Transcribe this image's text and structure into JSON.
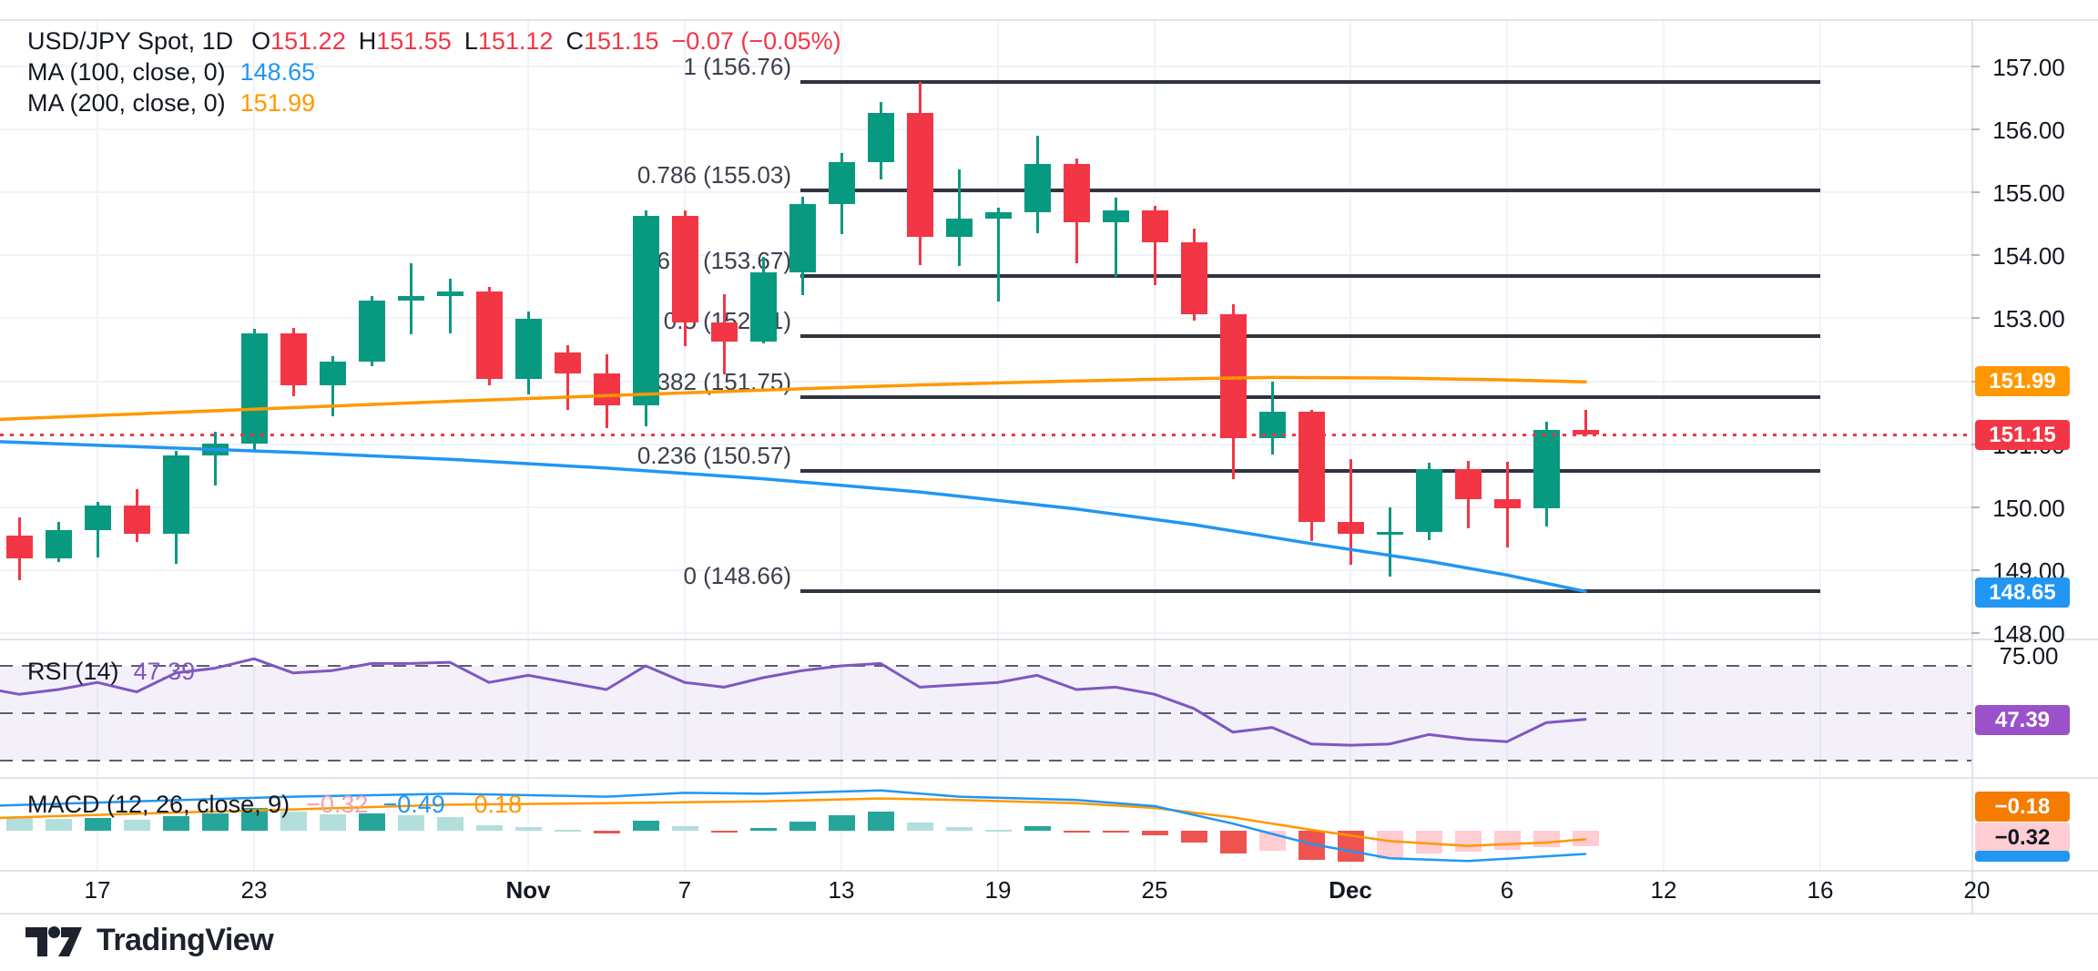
{
  "header": {
    "symbol": "USD/JPY Spot, 1D",
    "ohlc": {
      "o_key": "O",
      "o": "151.22",
      "h_key": "H",
      "h": "151.55",
      "l_key": "L",
      "l": "151.12",
      "c_key": "C",
      "c": "151.15",
      "change": "−0.07 (−0.05%)"
    },
    "ma100": {
      "label": "MA (100, close, 0)",
      "value": "148.65"
    },
    "ma200": {
      "label": "MA (200, close, 0)",
      "value": "151.99"
    }
  },
  "rsi_legend": {
    "label": "RSI (14)",
    "value": "47.39"
  },
  "macd_legend": {
    "label": "MACD (12, 26, close, 9)",
    "hist": "−0.32",
    "macd": "−0.49",
    "signal": "−0.18"
  },
  "badges": {
    "ma200": "151.99",
    "last": "151.15",
    "ma100": "148.65",
    "rsi": "47.39",
    "macd_signal": "−0.18",
    "macd_hist": "−0.32"
  },
  "footer": {
    "logo": "TradingView"
  },
  "colors": {
    "up": "#089981",
    "down": "#F23645",
    "ma100": "#2196F3",
    "ma200": "#FF9800",
    "rsi": "#7E57C2",
    "fib": "#30343F",
    "grid": "#F0F3FA",
    "separator": "#E0E3EB",
    "axis_text": "#131722",
    "hist_up": "#B2DFDB",
    "hist_up_strong": "#26A69A",
    "hist_down": "#FFCDD2",
    "hist_down_strong": "#EF5350",
    "band": "rgba(126,87,194,0.09)",
    "dashed": "#5D6069",
    "last_line": "#F23645",
    "badge_ma200": "#FF9800",
    "badge_last": "#F23645",
    "badge_ma100": "#2196F3",
    "badge_rsi": "#9B51C9",
    "badge_macd_signal": "#F57C00",
    "badge_macd_hist_bg": "#FFCDD2",
    "badge_macd_hist_text": "#131722"
  },
  "axes": {
    "price_labels": [
      {
        "text": "157.00",
        "price": 157
      },
      {
        "text": "156.00",
        "price": 156
      },
      {
        "text": "155.00",
        "price": 155
      },
      {
        "text": "154.00",
        "price": 154
      },
      {
        "text": "153.00",
        "price": 153
      },
      {
        "text": "152.00",
        "price": 152
      },
      {
        "text": "151.00",
        "price": 151
      },
      {
        "text": "150.00",
        "price": 150
      },
      {
        "text": "149.00",
        "price": 149
      },
      {
        "text": "148.00",
        "price": 148
      }
    ],
    "rsi_label": {
      "text": "75.00",
      "value": 75
    },
    "time_labels": [
      {
        "text": "17",
        "i": 3,
        "bold": false
      },
      {
        "text": "23",
        "i": 7,
        "bold": false
      },
      {
        "text": "Nov",
        "i": 14,
        "bold": true
      },
      {
        "text": "7",
        "i": 18,
        "bold": false
      },
      {
        "text": "13",
        "i": 22,
        "bold": false
      },
      {
        "text": "19",
        "i": 26,
        "bold": false
      },
      {
        "text": "25",
        "i": 30,
        "bold": false
      },
      {
        "text": "Dec",
        "i": 35,
        "bold": true
      },
      {
        "text": "6",
        "i": 39,
        "bold": false
      },
      {
        "text": "12",
        "i": 43,
        "bold": false
      },
      {
        "text": "16",
        "i": 47,
        "bold": false
      },
      {
        "text": "20",
        "i": 51,
        "bold": false
      }
    ]
  },
  "chart_data": {
    "type": "candlestick",
    "title": "USD/JPY Spot, 1D",
    "price_axis_range": [
      147.9,
      157.75
    ],
    "legend_note": "Daily candles mid-Oct to Dec 10 with MA100, MA200, Fib retracement, RSI(14), MACD(12,26,9)",
    "candles": [
      {
        "d": "Oct 14",
        "o": 149.21,
        "h": 149.58,
        "l": 148.86,
        "c": 149.54
      },
      {
        "d": "Oct 15",
        "o": 149.54,
        "h": 149.83,
        "l": 148.84,
        "c": 149.19
      },
      {
        "d": "Oct 16",
        "o": 149.19,
        "h": 149.77,
        "l": 149.12,
        "c": 149.63
      },
      {
        "d": "Oct 17",
        "o": 149.63,
        "h": 150.08,
        "l": 149.2,
        "c": 150.03
      },
      {
        "d": "Oct 18",
        "o": 150.03,
        "h": 150.29,
        "l": 149.44,
        "c": 149.58
      },
      {
        "d": "Oct 21",
        "o": 149.58,
        "h": 150.89,
        "l": 149.1,
        "c": 150.82
      },
      {
        "d": "Oct 22",
        "o": 150.82,
        "h": 151.19,
        "l": 150.34,
        "c": 151.01
      },
      {
        "d": "Oct 23",
        "o": 151.01,
        "h": 152.83,
        "l": 150.91,
        "c": 152.76
      },
      {
        "d": "Oct 24",
        "o": 152.76,
        "h": 152.84,
        "l": 151.76,
        "c": 151.94
      },
      {
        "d": "Oct 25",
        "o": 151.94,
        "h": 152.4,
        "l": 151.45,
        "c": 152.31
      },
      {
        "d": "Oct 28",
        "o": 152.31,
        "h": 153.36,
        "l": 152.24,
        "c": 153.28
      },
      {
        "d": "Oct 29",
        "o": 153.28,
        "h": 153.88,
        "l": 152.74,
        "c": 153.36
      },
      {
        "d": "Oct 30",
        "o": 153.36,
        "h": 153.63,
        "l": 152.76,
        "c": 153.42
      },
      {
        "d": "Oct 31",
        "o": 153.42,
        "h": 153.5,
        "l": 151.93,
        "c": 152.03
      },
      {
        "d": "Nov 1",
        "o": 152.03,
        "h": 153.1,
        "l": 151.79,
        "c": 152.99
      },
      {
        "d": "Nov 4",
        "o": 152.45,
        "h": 152.57,
        "l": 151.55,
        "c": 152.13
      },
      {
        "d": "Nov 5",
        "o": 152.13,
        "h": 152.42,
        "l": 151.26,
        "c": 151.62
      },
      {
        "d": "Nov 6",
        "o": 151.62,
        "h": 154.71,
        "l": 151.28,
        "c": 154.62
      },
      {
        "d": "Nov 7",
        "o": 154.62,
        "h": 154.71,
        "l": 152.55,
        "c": 152.94
      },
      {
        "d": "Nov 8",
        "o": 152.94,
        "h": 153.38,
        "l": 152.11,
        "c": 152.63
      },
      {
        "d": "Nov 11",
        "o": 152.63,
        "h": 153.97,
        "l": 152.6,
        "c": 153.73
      },
      {
        "d": "Nov 12",
        "o": 153.73,
        "h": 154.93,
        "l": 153.37,
        "c": 154.81
      },
      {
        "d": "Nov 13",
        "o": 154.81,
        "h": 155.62,
        "l": 154.33,
        "c": 155.48
      },
      {
        "d": "Nov 14",
        "o": 155.48,
        "h": 156.43,
        "l": 155.2,
        "c": 156.26
      },
      {
        "d": "Nov 15",
        "o": 156.26,
        "h": 156.76,
        "l": 153.85,
        "c": 154.3
      },
      {
        "d": "Nov 18",
        "o": 154.3,
        "h": 155.37,
        "l": 153.83,
        "c": 154.59
      },
      {
        "d": "Nov 19",
        "o": 154.59,
        "h": 154.75,
        "l": 153.27,
        "c": 154.68
      },
      {
        "d": "Nov 20",
        "o": 154.68,
        "h": 155.9,
        "l": 154.35,
        "c": 155.45
      },
      {
        "d": "Nov 21",
        "o": 155.45,
        "h": 155.54,
        "l": 153.88,
        "c": 154.52
      },
      {
        "d": "Nov 22",
        "o": 154.52,
        "h": 154.92,
        "l": 153.66,
        "c": 154.71
      },
      {
        "d": "Nov 25",
        "o": 154.71,
        "h": 154.79,
        "l": 153.53,
        "c": 154.21
      },
      {
        "d": "Nov 26",
        "o": 154.21,
        "h": 154.42,
        "l": 152.96,
        "c": 153.06
      },
      {
        "d": "Nov 27",
        "o": 153.06,
        "h": 153.23,
        "l": 150.45,
        "c": 151.1
      },
      {
        "d": "Nov 28",
        "o": 151.1,
        "h": 151.99,
        "l": 150.84,
        "c": 151.51
      },
      {
        "d": "Nov 29",
        "o": 151.51,
        "h": 151.55,
        "l": 149.46,
        "c": 149.76
      },
      {
        "d": "Dec 2",
        "o": 149.76,
        "h": 150.76,
        "l": 149.08,
        "c": 149.58
      },
      {
        "d": "Dec 3",
        "o": 149.58,
        "h": 149.99,
        "l": 148.9,
        "c": 149.6
      },
      {
        "d": "Dec 4",
        "o": 149.6,
        "h": 150.71,
        "l": 149.48,
        "c": 150.6
      },
      {
        "d": "Dec 5",
        "o": 150.6,
        "h": 150.74,
        "l": 149.66,
        "c": 150.12
      },
      {
        "d": "Dec 6",
        "o": 150.12,
        "h": 150.72,
        "l": 149.36,
        "c": 149.98
      },
      {
        "d": "Dec 9",
        "o": 149.98,
        "h": 151.35,
        "l": 149.69,
        "c": 151.22
      },
      {
        "d": "Dec 10",
        "o": 151.22,
        "h": 151.55,
        "l": 151.12,
        "c": 151.15
      }
    ],
    "last_price": 151.15,
    "ma100_value": 148.65,
    "ma200_value": 151.99,
    "ma100": [
      [
        0,
        151.05
      ],
      [
        4,
        150.96
      ],
      [
        8,
        150.87
      ],
      [
        12,
        150.76
      ],
      [
        16,
        150.62
      ],
      [
        20,
        150.45
      ],
      [
        24,
        150.24
      ],
      [
        28,
        149.97
      ],
      [
        31,
        149.72
      ],
      [
        34,
        149.42
      ],
      [
        37,
        149.14
      ],
      [
        39,
        148.92
      ],
      [
        41,
        148.66
      ]
    ],
    "ma200": [
      [
        0,
        151.38
      ],
      [
        4,
        151.48
      ],
      [
        8,
        151.58
      ],
      [
        12,
        151.68
      ],
      [
        16,
        151.77
      ],
      [
        20,
        151.86
      ],
      [
        24,
        151.94
      ],
      [
        27,
        151.99
      ],
      [
        30,
        152.03
      ],
      [
        33,
        152.06
      ],
      [
        36,
        152.05
      ],
      [
        39,
        152.02
      ],
      [
        41,
        151.99
      ]
    ],
    "fib_levels": [
      {
        "text": "1 (156.76)",
        "price": 156.76
      },
      {
        "text": "0.786 (155.03)",
        "price": 155.03
      },
      {
        "text": "0.618 (153.67)",
        "price": 153.67
      },
      {
        "text": "0.5 (152.71)",
        "price": 152.71
      },
      {
        "text": "0.382 (151.75)",
        "price": 151.75
      },
      {
        "text": "0.236 (150.57)",
        "price": 150.57
      },
      {
        "text": "0 (148.66)",
        "price": 148.66
      }
    ],
    "rsi": {
      "overbought": 70,
      "mid": 50,
      "oversold": 30,
      "current": 47.39,
      "values": [
        61,
        58,
        60,
        63,
        59,
        67,
        69,
        73,
        67,
        68,
        71,
        71,
        71.5,
        63,
        66,
        63,
        60,
        70,
        63,
        61,
        65,
        68,
        70,
        71,
        61,
        62,
        63,
        66,
        60,
        61,
        58,
        52,
        42,
        44,
        37,
        36.5,
        37,
        41,
        39,
        38,
        46,
        47.39
      ]
    },
    "macd": {
      "hist_current": -0.32,
      "macd_current": -0.49,
      "signal_current": -0.18,
      "hist": [
        0.28,
        0.26,
        0.25,
        0.27,
        0.24,
        0.3,
        0.36,
        0.48,
        0.4,
        0.34,
        0.36,
        0.33,
        0.28,
        0.12,
        0.08,
        0.02,
        -0.06,
        0.22,
        0.1,
        -0.04,
        0.06,
        0.2,
        0.32,
        0.4,
        0.18,
        0.08,
        0.02,
        0.1,
        -0.02,
        -0.04,
        -0.1,
        -0.25,
        -0.48,
        -0.42,
        -0.62,
        -0.66,
        -0.6,
        -0.48,
        -0.44,
        -0.4,
        -0.34,
        -0.32
      ],
      "macd_line": [
        [
          0,
          0.52
        ],
        [
          4,
          0.62
        ],
        [
          8,
          0.72
        ],
        [
          12,
          0.78
        ],
        [
          16,
          0.72
        ],
        [
          18,
          0.8
        ],
        [
          20,
          0.78
        ],
        [
          23,
          0.85
        ],
        [
          25,
          0.72
        ],
        [
          28,
          0.65
        ],
        [
          30,
          0.52
        ],
        [
          32,
          0.15
        ],
        [
          34,
          -0.28
        ],
        [
          36,
          -0.58
        ],
        [
          38,
          -0.64
        ],
        [
          40,
          -0.54
        ],
        [
          41,
          -0.49
        ]
      ],
      "signal_line": [
        [
          0,
          0.26
        ],
        [
          4,
          0.36
        ],
        [
          8,
          0.45
        ],
        [
          12,
          0.55
        ],
        [
          16,
          0.58
        ],
        [
          20,
          0.62
        ],
        [
          23,
          0.68
        ],
        [
          25,
          0.65
        ],
        [
          28,
          0.58
        ],
        [
          30,
          0.48
        ],
        [
          32,
          0.28
        ],
        [
          34,
          0.02
        ],
        [
          36,
          -0.22
        ],
        [
          38,
          -0.32
        ],
        [
          40,
          -0.25
        ],
        [
          41,
          -0.18
        ]
      ]
    }
  }
}
